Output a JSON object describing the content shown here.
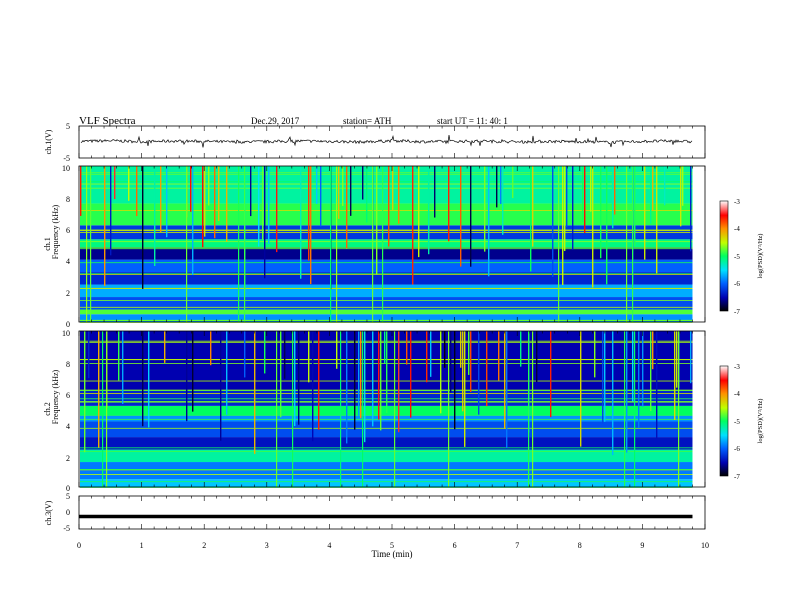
{
  "header": {
    "title": "VLF  Spectra",
    "date": "Dec.29, 2017",
    "station": "station= ATH",
    "start": "start  UT  =   11: 40: 1"
  },
  "chart_data": [
    {
      "type": "line",
      "name": "ch1-waveform",
      "ylabel": "ch.1(V)",
      "xlim": [
        0,
        10
      ],
      "ylim": [
        -5,
        5
      ],
      "yticks": [
        "5",
        "-5"
      ],
      "x": [
        0.0,
        0.5,
        1.0,
        1.5,
        2.0,
        2.5,
        3.0,
        3.5,
        4.0,
        4.5,
        5.0,
        5.5,
        6.0,
        6.5,
        7.0,
        7.5,
        8.0,
        8.5,
        9.0,
        9.5,
        9.8
      ],
      "y": [
        0.2,
        0.4,
        0.1,
        0.3,
        0.2,
        0.0,
        0.1,
        0.3,
        0.2,
        0.0,
        0.4,
        0.1,
        0.2,
        0.3,
        0.0,
        0.2,
        0.1,
        -0.1,
        0.2,
        0.3,
        0.1
      ]
    },
    {
      "type": "heatmap",
      "name": "ch1-spectrogram",
      "ylabel_line1": "ch.1",
      "ylabel_line2": "Frequency  (kHz)",
      "xlim": [
        0,
        10
      ],
      "ylim": [
        0,
        10
      ],
      "yticks": [
        "10",
        "8",
        "6",
        "4",
        "2",
        "0"
      ],
      "colorbar": {
        "label": "log(PSD)(V²/Hz)",
        "min": -7,
        "max": -3,
        "ticks": [
          "-3",
          "-4",
          "-5",
          "-6",
          "-7"
        ],
        "colors": [
          "#000000",
          "#0000b0",
          "#0060ff",
          "#00e0ff",
          "#00ff60",
          "#c0ff00",
          "#ff9000",
          "#ff0000",
          "#ffffff"
        ]
      },
      "band_levels_by_kHz": [
        [
          0.0,
          0.5,
          -5.8
        ],
        [
          0.5,
          0.8,
          -4.8
        ],
        [
          0.8,
          1.6,
          -6.1
        ],
        [
          1.6,
          2.4,
          -5.7
        ],
        [
          2.4,
          3.2,
          -6.3
        ],
        [
          3.2,
          4.0,
          -6.0
        ],
        [
          4.0,
          4.8,
          -6.6
        ],
        [
          4.8,
          5.3,
          -5.1
        ],
        [
          5.3,
          6.2,
          -6.2
        ],
        [
          6.2,
          7.6,
          -4.9
        ],
        [
          7.6,
          10.0,
          -5.2
        ]
      ]
    },
    {
      "type": "heatmap",
      "name": "ch2-spectrogram",
      "ylabel_line1": "ch.2",
      "ylabel_line2": "Frequency  (kHz)",
      "xlim": [
        0,
        10
      ],
      "ylim": [
        0,
        10
      ],
      "yticks": [
        "10",
        "8",
        "6",
        "4",
        "2",
        "0"
      ],
      "colorbar": {
        "label": "log(PSD)(V²/Hz)",
        "min": -7,
        "max": -3,
        "ticks": [
          "-3",
          "-4",
          "-5",
          "-6",
          "-7"
        ],
        "colors": [
          "#000000",
          "#0000b0",
          "#0060ff",
          "#00e0ff",
          "#00ff60",
          "#c0ff00",
          "#ff9000",
          "#ff0000",
          "#ffffff"
        ]
      },
      "band_levels_by_kHz": [
        [
          0.0,
          0.5,
          -5.6
        ],
        [
          0.5,
          1.6,
          -5.9
        ],
        [
          1.6,
          2.4,
          -5.2
        ],
        [
          2.4,
          3.2,
          -6.4
        ],
        [
          3.2,
          4.2,
          -6.1
        ],
        [
          4.2,
          4.6,
          -5.8
        ],
        [
          4.6,
          5.2,
          -5.0
        ],
        [
          5.2,
          6.2,
          -6.3
        ],
        [
          6.2,
          10.0,
          -6.5
        ]
      ]
    },
    {
      "type": "line",
      "name": "ch3-waveform",
      "ylabel": "ch.3(V)",
      "xlabel": "Time  (min)",
      "xlim": [
        0,
        10
      ],
      "ylim": [
        -5,
        5
      ],
      "yticks": [
        "5",
        "0",
        "-5"
      ],
      "xticks": [
        "0",
        "1",
        "2",
        "3",
        "4",
        "5",
        "6",
        "7",
        "8",
        "9",
        "10"
      ],
      "x": [
        0.0,
        9.8
      ],
      "y": [
        -1.2,
        -1.2
      ]
    }
  ]
}
